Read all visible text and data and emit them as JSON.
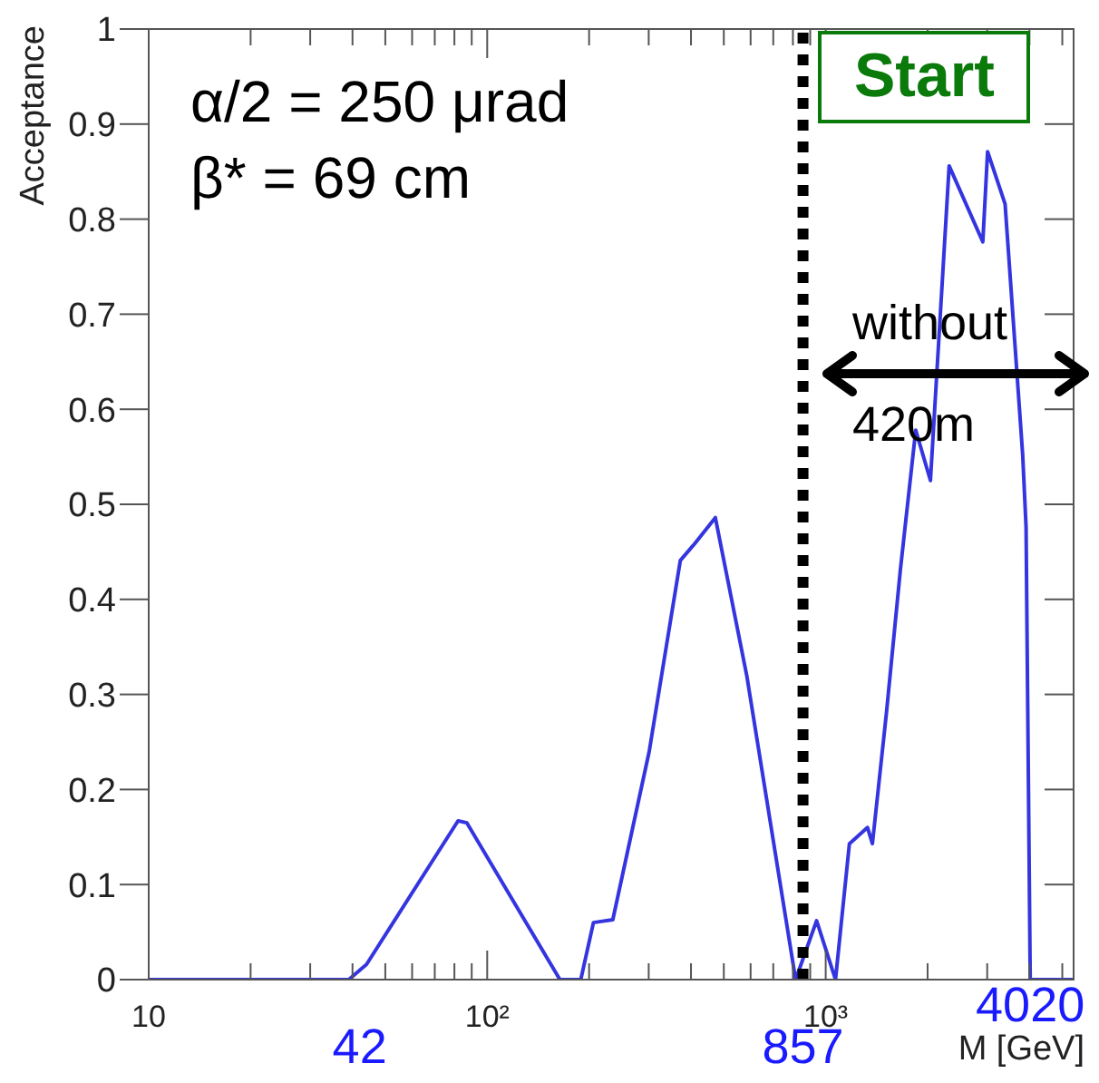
{
  "chart_data": {
    "type": "line",
    "xlabel": "M [GeV]",
    "ylabel": "Acceptance",
    "log": "x",
    "marker": "none",
    "line_style": "solid",
    "xlim": [
      10,
      5400
    ],
    "ylim": [
      0,
      1
    ],
    "xticks": [
      10,
      {
        "value": 20,
        "label": null
      },
      {
        "value": 30,
        "label": null
      },
      {
        "value": 40,
        "label": null
      },
      {
        "value": 50,
        "label": null
      },
      {
        "value": 60,
        "label": null
      },
      {
        "value": 70,
        "label": null
      },
      {
        "value": 80,
        "label": null
      },
      {
        "value": 90,
        "label": null
      },
      {
        "value": 100,
        "label": "10²"
      },
      {
        "value": 200,
        "label": null
      },
      {
        "value": 300,
        "label": null
      },
      {
        "value": 400,
        "label": null
      },
      {
        "value": 500,
        "label": null
      },
      {
        "value": 600,
        "label": null
      },
      {
        "value": 700,
        "label": null
      },
      {
        "value": 800,
        "label": null
      },
      {
        "value": 900,
        "label": null
      },
      {
        "value": 1000,
        "label": "10³"
      },
      {
        "value": 2000,
        "label": null
      },
      {
        "value": 3000,
        "label": null
      },
      {
        "value": 4000,
        "label": null
      },
      {
        "value": 5000,
        "label": null
      }
    ],
    "yticks": [
      0,
      0.1,
      0.2,
      0.3,
      0.4,
      0.5,
      0.6,
      0.7,
      0.8,
      0.9,
      1
    ],
    "series": [
      {
        "color": "#3535e0",
        "x": [
          10,
          39,
          44,
          82,
          87,
          164,
          189,
          206,
          235,
          301,
          372,
          409,
          472,
          585,
          815,
          940,
          1069,
          1175,
          1329,
          1374,
          1513,
          1663,
          1845,
          2039,
          2316,
          2912,
          3008,
          3388,
          3819,
          3908,
          4020,
          5400
        ],
        "values": [
          0,
          0,
          0.016,
          0.167,
          0.165,
          0,
          0,
          0.06,
          0.063,
          0.24,
          0.441,
          0.458,
          0.486,
          0.319,
          0,
          0.062,
          0,
          0.143,
          0.16,
          0.143,
          0.282,
          0.432,
          0.578,
          0.525,
          0.856,
          0.776,
          0.871,
          0.816,
          0.552,
          0.476,
          0,
          0
        ]
      }
    ],
    "ref_lines": [
      {
        "axis": "x",
        "value": 857,
        "label": "857",
        "color": "#000000",
        "line_style": "dotted"
      }
    ],
    "annotations": [
      "α/2 = 250 μrad",
      "β* = 69 cm",
      "Start",
      "without 420m",
      {
        "text": "42",
        "x": 42,
        "y": 0
      },
      {
        "text": "4020",
        "x": 4020,
        "y": 0
      }
    ]
  }
}
